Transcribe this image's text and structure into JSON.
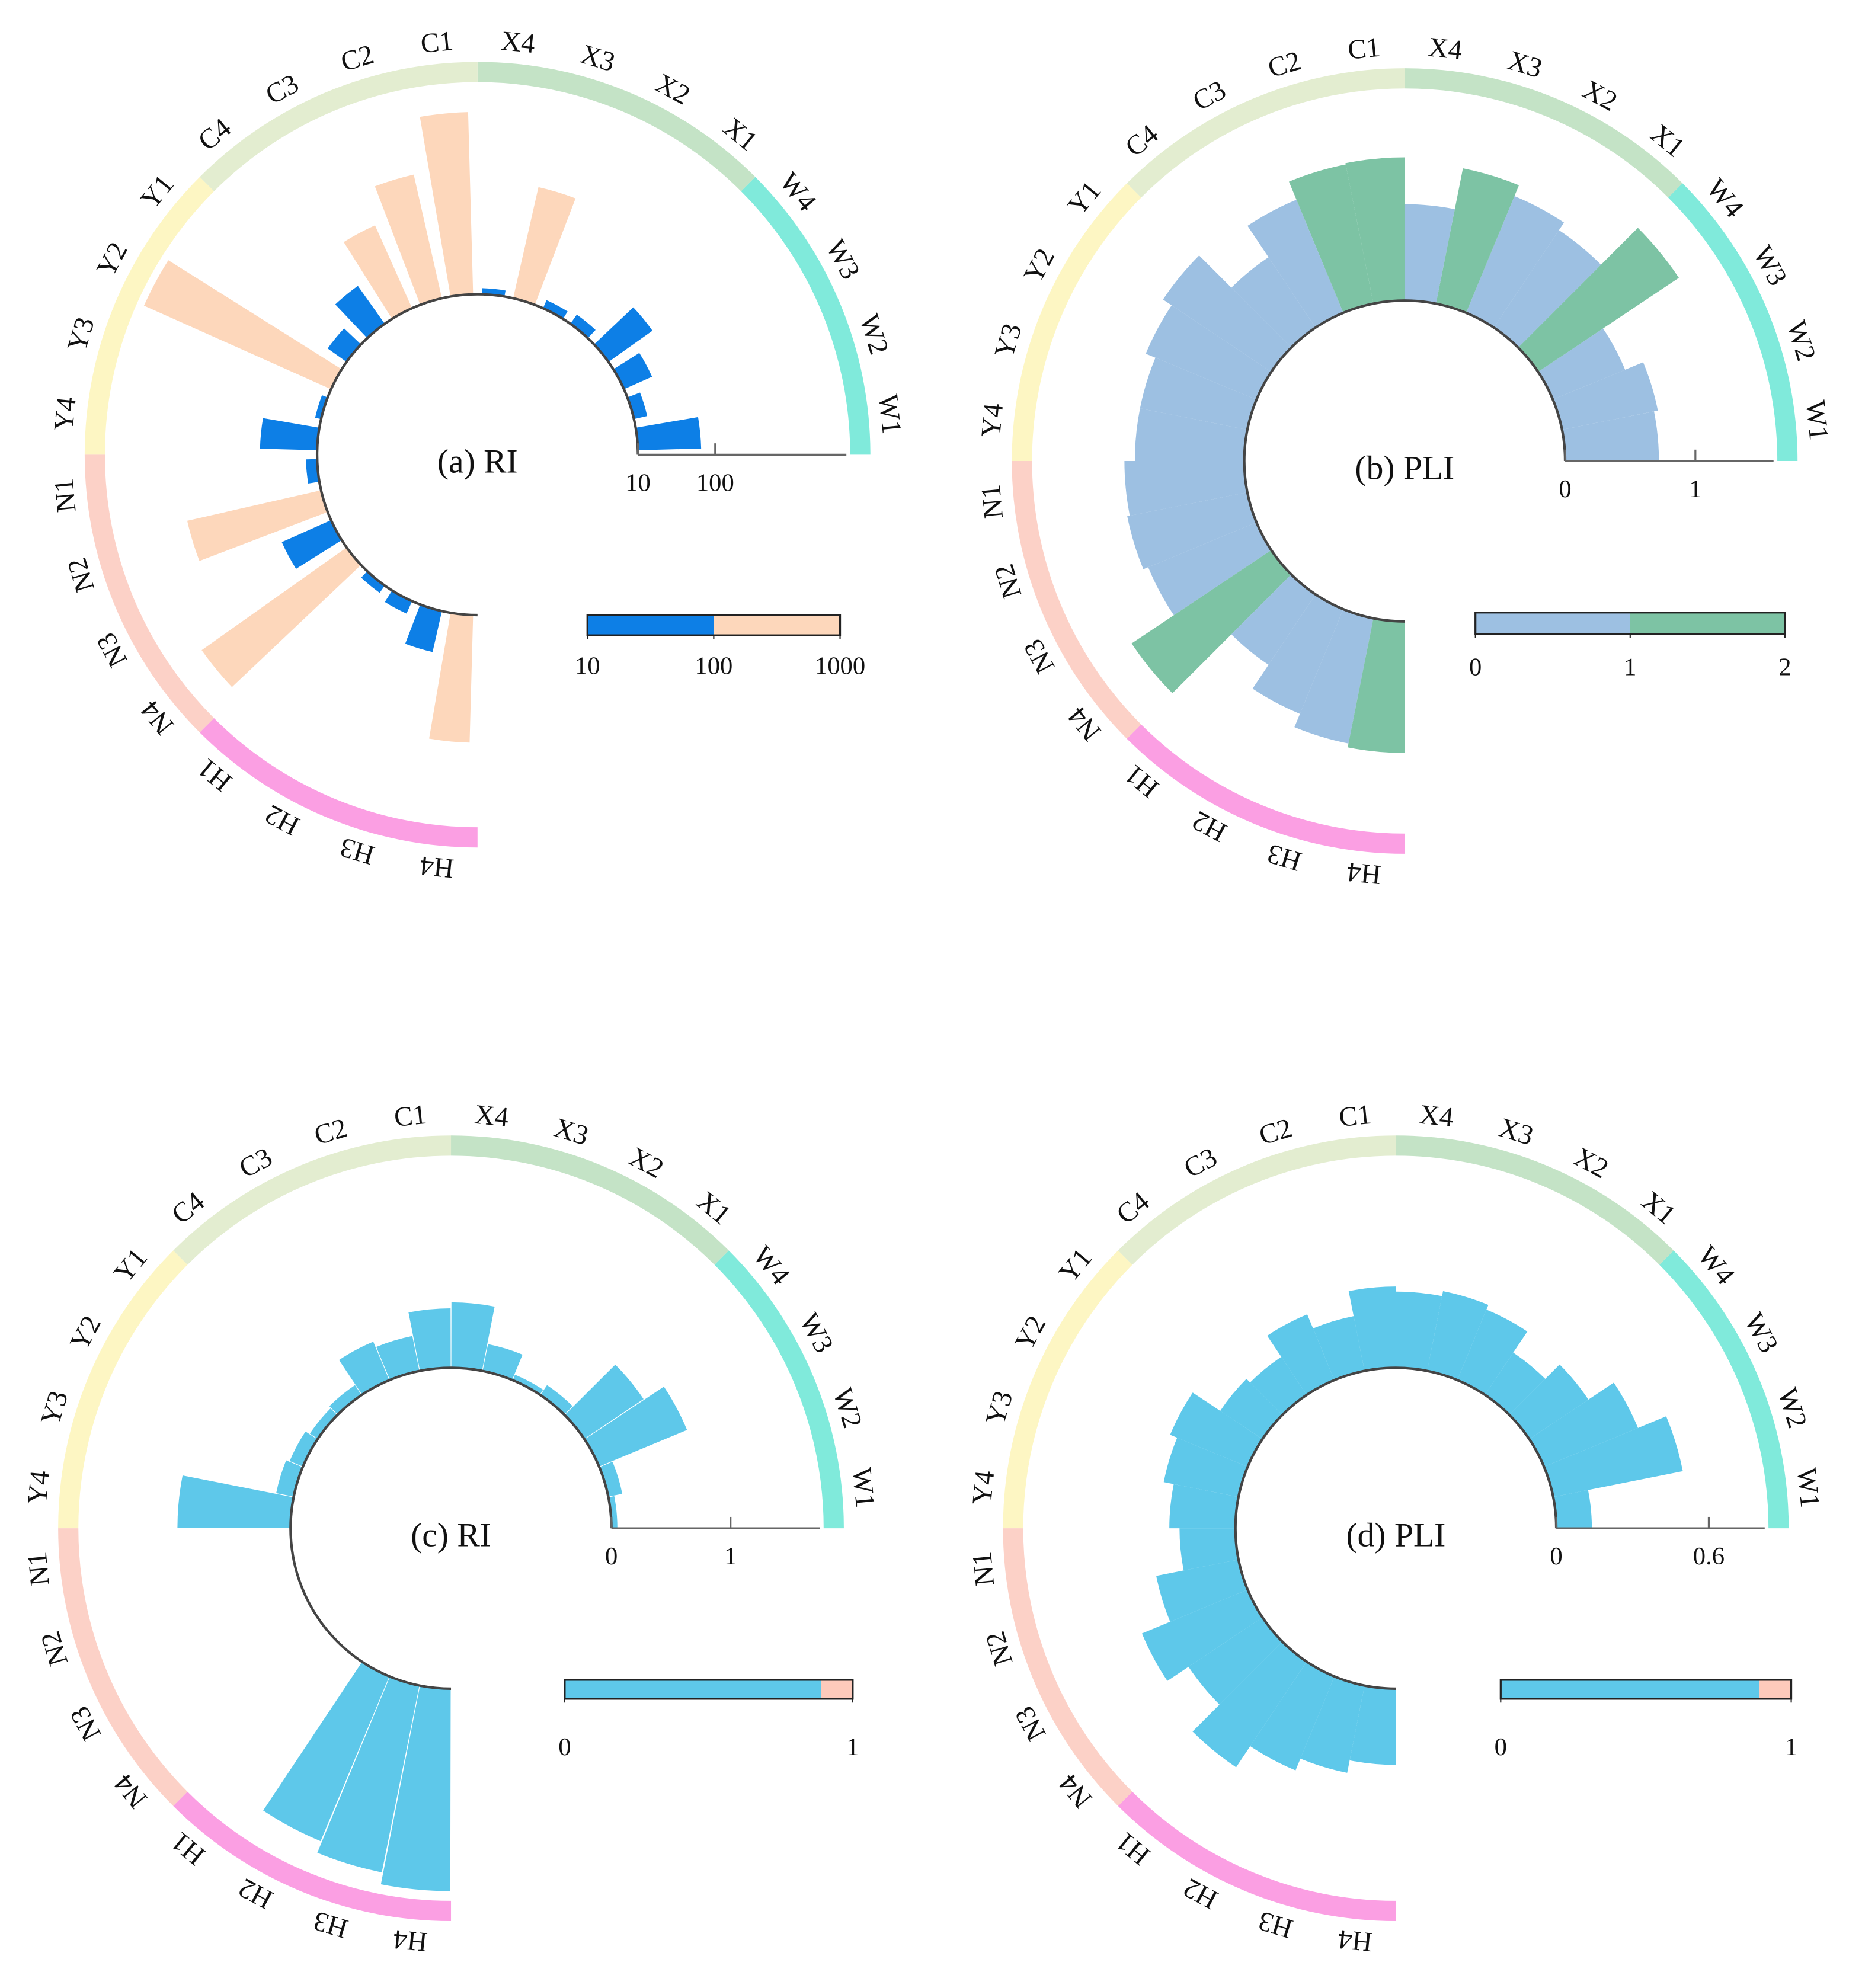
{
  "chart_data": [
    {
      "type": "radial_bar",
      "title": "(a) RI",
      "categories": [
        "W1",
        "W2",
        "W3",
        "W4",
        "X1",
        "X2",
        "X3",
        "X4",
        "C1",
        "C2",
        "C3",
        "C4",
        "Y1",
        "Y2",
        "Y3",
        "Y4",
        "N1",
        "N2",
        "N3",
        "N4",
        "H1",
        "H2",
        "H3",
        "H4"
      ],
      "values": [
        66,
        15,
        25,
        50,
        14,
        13,
        300,
        12,
        2300,
        440,
        150,
        40,
        20,
        4500,
        12,
        55,
        14,
        600,
        50,
        2000,
        13,
        15,
        35,
        450
      ],
      "colors": [
        "#0d7fe6",
        "#0d7fe6",
        "#0d7fe6",
        "#0d7fe6",
        "#0d7fe6",
        "#0d7fe6",
        "#fdd7bb",
        "#0d7fe6",
        "#fdd7bb",
        "#fdd7bb",
        "#fdd7bb",
        "#0d7fe6",
        "#0d7fe6",
        "#fdd7bb",
        "#0d7fe6",
        "#0d7fe6",
        "#0d7fe6",
        "#fdd7bb",
        "#0d7fe6",
        "#fdd7bb",
        "#0d7fe6",
        "#0d7fe6",
        "#0d7fe6",
        "#fdd7bb"
      ],
      "yscale": "log",
      "ylim": [
        10,
        5000
      ],
      "yticks": [
        10,
        100
      ],
      "band_colors": [
        "#80eadb",
        "#c4e3c6",
        "#e3edd0",
        "#fdf6c3",
        "#fcd1c7",
        "#fb9fe3"
      ],
      "colorbar": {
        "lim": [
          10,
          1000
        ],
        "breaks": [
          100
        ],
        "colors": [
          "#0d7fe6",
          "#fdd7bb"
        ],
        "ticks": [
          10,
          100,
          1000
        ]
      }
    },
    {
      "type": "radial_bar",
      "title": "(b) PLI",
      "categories": [
        "W1",
        "W2",
        "W3",
        "W4",
        "X1",
        "X2",
        "X3",
        "X4",
        "C1",
        "C2",
        "C3",
        "C4",
        "Y1",
        "Y2",
        "Y3",
        "Y4",
        "N1",
        "N2",
        "N3",
        "N4",
        "H1",
        "H2",
        "H3",
        "H4"
      ],
      "values": [
        0.72,
        0.75,
        0.6,
        1.3,
        0.9,
        0.97,
        1.06,
        0.74,
        1.1,
        1.09,
        0.94,
        0.65,
        1.0,
        0.92,
        0.84,
        0.84,
        0.92,
        0.94,
        0.9,
        1.29,
        0.65,
        0.87,
        0.98,
        1.01
      ],
      "colors": [
        "#9dc0e2",
        "#9dc0e2",
        "#9dc0e2",
        "#7dc3a4",
        "#9dc0e2",
        "#9dc0e2",
        "#7dc3a4",
        "#9dc0e2",
        "#7dc3a4",
        "#7dc3a4",
        "#9dc0e2",
        "#9dc0e2",
        "#9dc0e2",
        "#9dc0e2",
        "#9dc0e2",
        "#9dc0e2",
        "#9dc0e2",
        "#9dc0e2",
        "#9dc0e2",
        "#7dc3a4",
        "#9dc0e2",
        "#9dc0e2",
        "#9dc0e2",
        "#7dc3a4"
      ],
      "yscale": "linear",
      "ylim": [
        0,
        1.6
      ],
      "yticks": [
        0,
        1
      ],
      "band_colors": [
        "#80eadb",
        "#c4e3c6",
        "#e3edd0",
        "#fdf6c3",
        "#fcd1c7",
        "#fb9fe3"
      ],
      "colorbar": {
        "lim": [
          0,
          2
        ],
        "breaks": [
          1
        ],
        "colors": [
          "#9dc0e2",
          "#7dc3a4"
        ],
        "ticks": [
          0,
          1,
          2
        ]
      }
    },
    {
      "type": "radial_bar",
      "title": "(c) RI",
      "categories": [
        "W1",
        "W2",
        "W3",
        "W4",
        "X1",
        "X2",
        "X3",
        "X4",
        "C1",
        "C2",
        "C3",
        "C4",
        "Y1",
        "Y2",
        "Y3",
        "Y4",
        "N1",
        "N2",
        "N3",
        "N4",
        "H1",
        "H2",
        "H3",
        "H4"
      ],
      "values": [
        0.05,
        0.12,
        0.8,
        0.6,
        0.1,
        0.05,
        0.23,
        0.55,
        0.5,
        0.3,
        0.35,
        0.1,
        0.08,
        0.12,
        0.15,
        0.95,
        0,
        0,
        0,
        0,
        0,
        1.5,
        1.6,
        1.7
      ],
      "color": "#5ec8ea",
      "yscale": "linear",
      "ylim": [
        0,
        1.75
      ],
      "yticks": [
        0,
        1
      ],
      "band_colors": [
        "#80eadb",
        "#c4e3c6",
        "#e3edd0",
        "#fdf6c3",
        "#fcd1c7",
        "#fb9fe3"
      ],
      "colorbar": {
        "lim": [
          0,
          1
        ],
        "breaks": [
          0.89
        ],
        "colors": [
          "#5ec8ea",
          "#fdcabb"
        ],
        "ticks": [
          0,
          1
        ]
      }
    },
    {
      "type": "radial_bar",
      "title": "(d) PLI",
      "categories": [
        "W1",
        "W2",
        "W3",
        "W4",
        "X1",
        "X2",
        "X3",
        "X4",
        "C1",
        "C2",
        "C3",
        "C4",
        "Y1",
        "Y2",
        "Y3",
        "Y4",
        "N1",
        "N2",
        "N3",
        "N4",
        "H1",
        "H2",
        "H3",
        "H4"
      ],
      "values": [
        0.14,
        0.52,
        0.4,
        0.28,
        0.2,
        0.3,
        0.32,
        0.3,
        0.32,
        0.22,
        0.28,
        0.18,
        0.2,
        0.33,
        0.3,
        0.26,
        0.22,
        0.33,
        0.45,
        0.35,
        0.5,
        0.4,
        0.35,
        0.3
      ],
      "color": "#5ec8ea",
      "yscale": "linear",
      "ylim": [
        0,
        0.82
      ],
      "yticks": [
        0,
        0.6
      ],
      "band_colors": [
        "#80eadb",
        "#c4e3c6",
        "#e3edd0",
        "#fdf6c3",
        "#fcd1c7",
        "#fb9fe3"
      ],
      "colorbar": {
        "lim": [
          0,
          1
        ],
        "breaks": [
          0.89
        ],
        "colors": [
          "#5ec8ea",
          "#fdcabb"
        ],
        "ticks": [
          0,
          1
        ]
      }
    }
  ]
}
